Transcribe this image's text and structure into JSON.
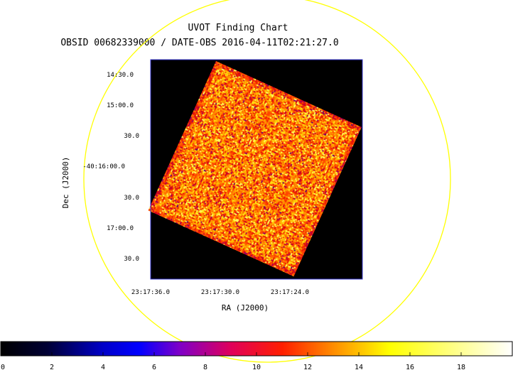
{
  "chart_data": {
    "type": "heatmap",
    "title": "UVOT Finding Chart",
    "subtitle": "OBSID 00682339000 / DATE-OBS 2016-04-11T02:21:27.0",
    "xlabel": "RA (J2000)",
    "ylabel": "Dec (J2000)",
    "x_ticks": [
      "23:17:36.0",
      "23:17:30.0",
      "23:17:24.0"
    ],
    "y_ticks": [
      "14:30.0",
      "15:00.0",
      "30.0",
      "-40:16:00.0",
      "30.0",
      "17:00.0",
      "30.0"
    ],
    "colorbar": {
      "range": [
        0,
        20
      ],
      "ticks": [
        0,
        2,
        4,
        6,
        8,
        10,
        12,
        14,
        16,
        18
      ],
      "colormap": "heat",
      "stops": [
        "#000000",
        "#0000ff",
        "#ff0000",
        "#ffff00",
        "#ffffff"
      ]
    },
    "overlay_circle_color": "#ffff00",
    "image_frame_color": "#3333cc",
    "background_color": "#000000"
  }
}
